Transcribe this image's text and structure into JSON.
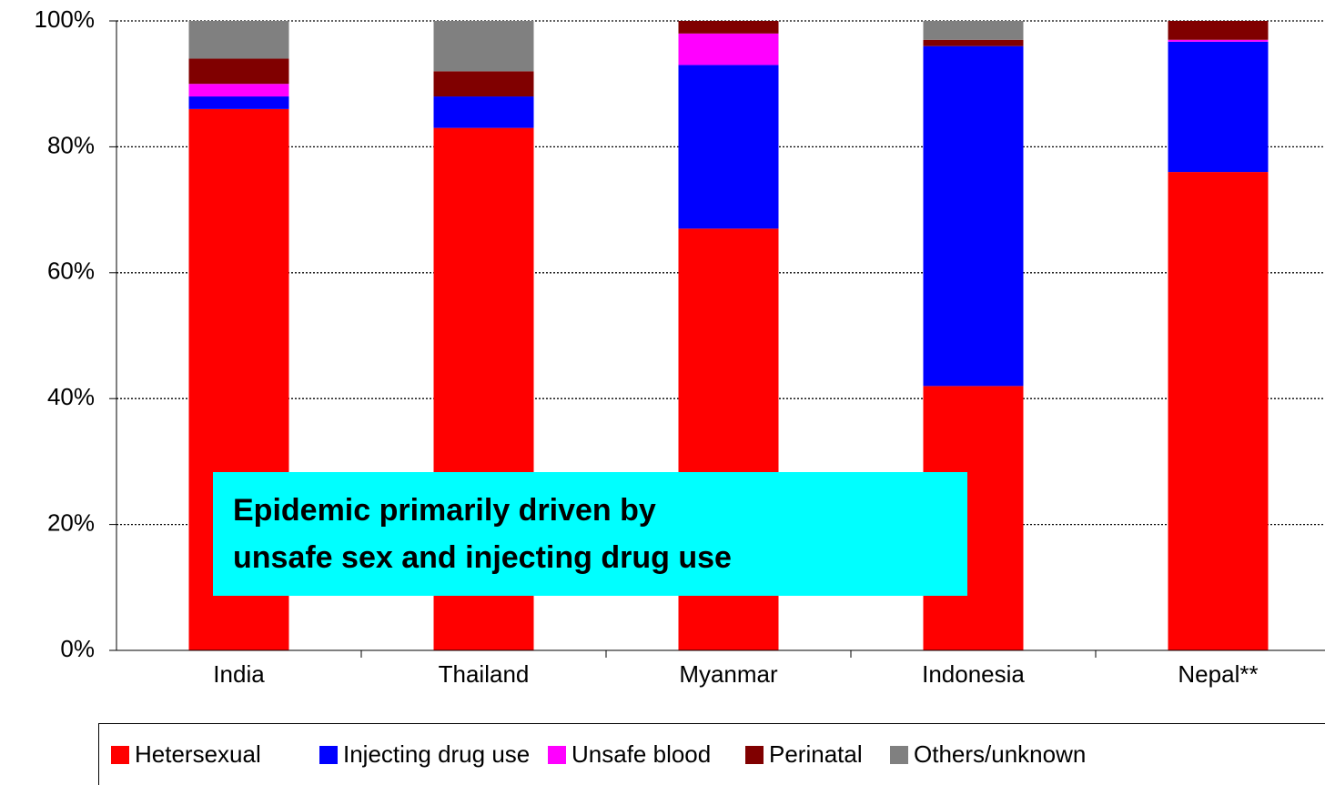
{
  "chart_data": {
    "type": "stacked_bar",
    "annotation": "Epidemic primarily driven by\nunsafe sex and injecting drug use",
    "categories": [
      "India",
      "Thailand",
      "Myanmar",
      "Indonesia",
      "Nepal**"
    ],
    "series": [
      {
        "name": "Hetersexual",
        "color": "#ff0000",
        "values": [
          86,
          83,
          67,
          42,
          76
        ]
      },
      {
        "name": "Injecting drug use",
        "color": "#0000ff",
        "values": [
          2,
          5,
          26,
          54,
          20.7
        ]
      },
      {
        "name": "Unsafe blood",
        "color": "#ff00ff",
        "values": [
          2,
          0,
          5,
          0,
          0.3
        ]
      },
      {
        "name": "Perinatal",
        "color": "#800000",
        "values": [
          4,
          4,
          2,
          1,
          3
        ]
      },
      {
        "name": "Others/unknown",
        "color": "#808080",
        "values": [
          6,
          8,
          0,
          3,
          0
        ]
      }
    ],
    "ylim": [
      0,
      100
    ],
    "yticks": [
      {
        "value": 0,
        "label": "0%"
      },
      {
        "value": 20,
        "label": "20%"
      },
      {
        "value": 40,
        "label": "40%"
      },
      {
        "value": 60,
        "label": "60%"
      },
      {
        "value": 80,
        "label": "80%"
      },
      {
        "value": 100,
        "label": "100%"
      }
    ],
    "grid": true,
    "legend": "bottom"
  }
}
